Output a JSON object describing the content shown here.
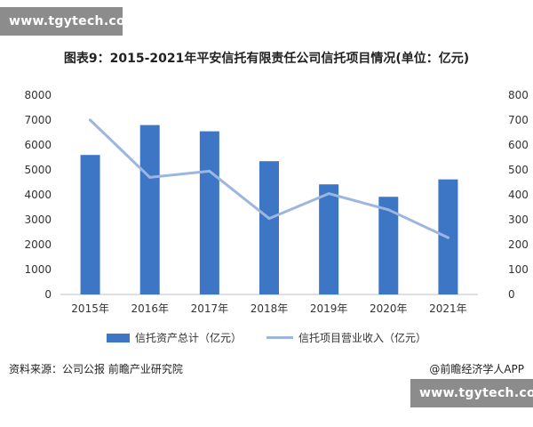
{
  "watermark_top": "www.tgytech.com",
  "watermark_bottom": "www.tgytech.com",
  "chart_data": {
    "type": "bar",
    "title": "图表9：2015-2021年平安信托有限责任公司信托项目情况(单位：亿元)",
    "categories": [
      "2015年",
      "2016年",
      "2017年",
      "2018年",
      "2019年",
      "2020年",
      "2021年"
    ],
    "series": [
      {
        "name": "信托资产总计（亿元）",
        "type": "bar",
        "axis": "left",
        "color": "#3c76c5",
        "values": [
          5600,
          6800,
          6550,
          5350,
          4420,
          3920,
          4620
        ]
      },
      {
        "name": "信托项目营业收入（亿元）",
        "type": "line",
        "axis": "right",
        "color": "#9cb6e0",
        "values": [
          700,
          470,
          495,
          305,
          405,
          340,
          228
        ]
      }
    ],
    "ylim_left": [
      0,
      8000
    ],
    "ylim_right": [
      0,
      800
    ],
    "yticks_left": [
      "0",
      "1000",
      "2000",
      "3000",
      "4000",
      "5000",
      "6000",
      "7000",
      "8000"
    ],
    "yticks_right": [
      "0",
      "100",
      "200",
      "300",
      "400",
      "500",
      "600",
      "700",
      "800"
    ],
    "grid": false,
    "legend": "bottom"
  },
  "source": "资料来源：公司公报 前瞻产业研究院",
  "brand": "@前瞻经济学人APP"
}
